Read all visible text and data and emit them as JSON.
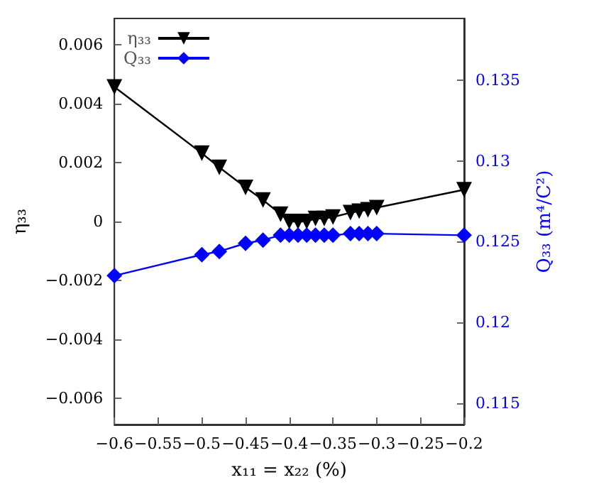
{
  "chart_data": {
    "type": "line",
    "xlabel": "x₁₁ = x₂₂ (%)",
    "ylabel": "η₃₃",
    "y2label": "Q₃₃ (m⁴/C²)",
    "x": [
      -0.6,
      -0.5,
      -0.48,
      -0.45,
      -0.43,
      -0.41,
      -0.4,
      -0.39,
      -0.38,
      -0.37,
      -0.36,
      -0.35,
      -0.33,
      -0.32,
      -0.31,
      -0.3,
      -0.2
    ],
    "series": [
      {
        "name": "η₃₃",
        "color": "#000000",
        "marker": "triangle-down",
        "values": [
          0.00457,
          0.00232,
          0.00184,
          0.00116,
          0.00073,
          0.00025,
          0.0,
          0.0,
          0.0,
          0.0001,
          0.0001,
          0.00015,
          0.0003,
          0.00035,
          0.0004,
          0.00047,
          0.00108
        ]
      },
      {
        "name": "Q₃₃",
        "color": "#0000ff",
        "marker": "diamond",
        "axis": "y2",
        "values": [
          0.1229,
          0.1242,
          0.1244,
          0.1249,
          0.1251,
          0.1254,
          0.1254,
          0.1254,
          0.1254,
          0.1254,
          0.1254,
          0.1254,
          0.1255,
          0.1255,
          0.1255,
          0.1255,
          0.1254
        ]
      }
    ],
    "xlim": [
      -0.6,
      -0.2
    ],
    "xticks": [
      -0.6,
      -0.55,
      -0.5,
      -0.45,
      -0.4,
      -0.35,
      -0.3,
      -0.25,
      -0.2
    ],
    "ylim": [
      -0.0069,
      0.0069
    ],
    "yticks": [
      -0.006,
      -0.004,
      -0.002,
      0,
      0.002,
      0.004,
      0.006
    ],
    "y2lim": [
      0.1137,
      0.1388
    ],
    "y2ticks": [
      0.115,
      0.12,
      0.125,
      0.13,
      0.135
    ],
    "legend": "top left",
    "grid": false
  }
}
